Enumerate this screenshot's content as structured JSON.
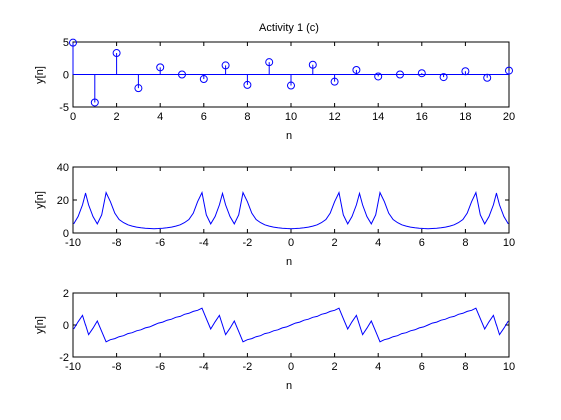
{
  "figure": {
    "background": "#ffffff",
    "line_color": "#0000ff"
  },
  "chart_data": [
    {
      "type": "stem",
      "title": "Activity 1 (c)",
      "xlabel": "n",
      "ylabel": "y[n]",
      "xlim": [
        0,
        20
      ],
      "ylim": [
        -5,
        5
      ],
      "xticks": [
        0,
        2,
        4,
        6,
        8,
        10,
        12,
        14,
        16,
        18,
        20
      ],
      "yticks": [
        -5,
        0,
        5
      ],
      "n": [
        0,
        1,
        2,
        3,
        4,
        5,
        6,
        7,
        8,
        9,
        10,
        11,
        12,
        13,
        14,
        15,
        16,
        17,
        18,
        19,
        20
      ],
      "values": [
        4.9,
        -4.3,
        3.3,
        -2.1,
        1.1,
        0.0,
        -0.7,
        1.4,
        -1.6,
        1.9,
        -1.7,
        1.5,
        -1.1,
        0.7,
        -0.3,
        0.0,
        0.2,
        -0.4,
        0.5,
        -0.5,
        0.6
      ],
      "marker": "circle",
      "grid": false
    },
    {
      "type": "line",
      "title": "",
      "xlabel": "n",
      "ylabel": "y[n]",
      "xlim": [
        -10,
        10
      ],
      "ylim": [
        0,
        40
      ],
      "xticks": [
        -10,
        -8,
        -6,
        -4,
        -2,
        0,
        2,
        4,
        6,
        8,
        10
      ],
      "yticks": [
        0,
        20,
        40
      ],
      "period": 6.2832,
      "x": [
        -3.14,
        -3.0,
        -2.8,
        -2.6,
        -2.4,
        -2.2,
        -2.0,
        -1.8,
        -1.6,
        -1.4,
        -1.2,
        -1.0,
        -0.8,
        -0.6,
        -0.4,
        -0.2,
        0.0,
        0.2,
        0.4,
        0.6,
        0.8,
        1.0,
        1.2,
        1.4,
        1.6,
        1.8,
        2.0,
        2.2,
        2.4,
        2.6,
        2.8,
        3.0,
        3.14
      ],
      "y": [
        24.0,
        17.0,
        10.0,
        5.5,
        11.0,
        24.5,
        19.0,
        12.0,
        8.2,
        6.3,
        5.0,
        4.2,
        3.6,
        3.2,
        2.9,
        2.7,
        2.6,
        2.7,
        2.9,
        3.2,
        3.6,
        4.2,
        5.0,
        6.3,
        8.2,
        12.0,
        19.0,
        24.5,
        11.0,
        5.5,
        10.0,
        17.0,
        24.0
      ],
      "grid": false
    },
    {
      "type": "line",
      "title": "",
      "xlabel": "n",
      "ylabel": "y[n]",
      "xlim": [
        -10,
        10
      ],
      "ylim": [
        -2,
        2
      ],
      "xticks": [
        -10,
        -8,
        -6,
        -4,
        -2,
        0,
        2,
        4,
        6,
        8,
        10
      ],
      "yticks": [
        -2,
        0,
        2
      ],
      "period": 6.2832,
      "x": [
        -3.14,
        -3.0,
        -2.8,
        -2.6,
        -2.4,
        -2.2,
        -2.0,
        -1.8,
        -1.6,
        -1.4,
        -1.2,
        -1.0,
        -0.8,
        -0.6,
        -0.4,
        -0.2,
        0.0,
        0.2,
        0.4,
        0.6,
        0.8,
        1.0,
        1.2,
        1.4,
        1.6,
        1.8,
        2.0,
        2.2,
        2.4,
        2.6,
        2.8,
        3.0,
        3.14
      ],
      "y": [
        0.0,
        -0.6,
        -0.2,
        0.25,
        -0.4,
        -1.05,
        -0.92,
        -0.85,
        -0.73,
        -0.67,
        -0.54,
        -0.48,
        -0.36,
        -0.3,
        -0.18,
        -0.12,
        0.0,
        0.12,
        0.18,
        0.3,
        0.36,
        0.48,
        0.54,
        0.67,
        0.73,
        0.85,
        0.92,
        1.05,
        0.4,
        -0.25,
        0.2,
        0.6,
        0.0
      ],
      "grid": false
    }
  ]
}
